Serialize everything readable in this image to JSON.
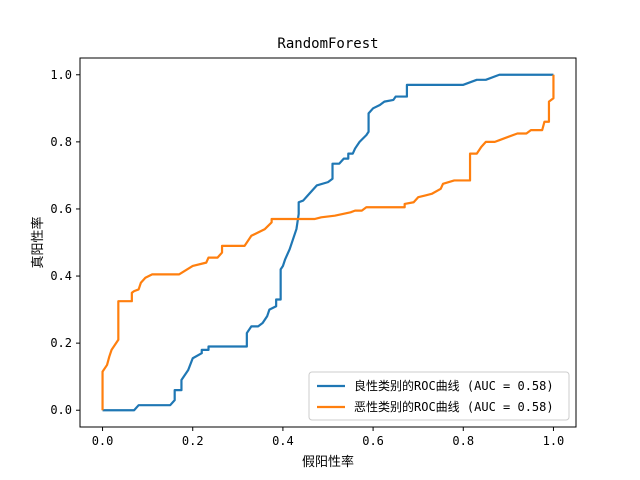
{
  "chart_data": {
    "type": "line",
    "title": "RandomForest",
    "xlabel": "假阳性率",
    "ylabel": "真阳性率",
    "xlim": [
      -0.05,
      1.05
    ],
    "ylim": [
      -0.05,
      1.05
    ],
    "xticks": [
      0.0,
      0.2,
      0.4,
      0.6,
      0.8,
      1.0
    ],
    "xtick_labels": [
      "0.0",
      "0.2",
      "0.4",
      "0.6",
      "0.8",
      "1.0"
    ],
    "yticks": [
      0.0,
      0.2,
      0.4,
      0.6,
      0.8,
      1.0
    ],
    "ytick_labels": [
      "0.0",
      "0.2",
      "0.4",
      "0.6",
      "0.8",
      "1.0"
    ],
    "grid": false,
    "legend_position": "bottom-right",
    "series": [
      {
        "name": "良性类别的ROC曲线 (AUC = 0.58)",
        "color": "#1f77b4",
        "points": [
          [
            0.0,
            0.0
          ],
          [
            0.07,
            0.0
          ],
          [
            0.08,
            0.015
          ],
          [
            0.15,
            0.015
          ],
          [
            0.16,
            0.03
          ],
          [
            0.16,
            0.06
          ],
          [
            0.175,
            0.06
          ],
          [
            0.175,
            0.09
          ],
          [
            0.19,
            0.12
          ],
          [
            0.2,
            0.155
          ],
          [
            0.22,
            0.17
          ],
          [
            0.22,
            0.18
          ],
          [
            0.235,
            0.18
          ],
          [
            0.235,
            0.19
          ],
          [
            0.32,
            0.19
          ],
          [
            0.32,
            0.23
          ],
          [
            0.33,
            0.25
          ],
          [
            0.345,
            0.25
          ],
          [
            0.355,
            0.26
          ],
          [
            0.36,
            0.27
          ],
          [
            0.365,
            0.28
          ],
          [
            0.37,
            0.3
          ],
          [
            0.385,
            0.31
          ],
          [
            0.385,
            0.33
          ],
          [
            0.395,
            0.33
          ],
          [
            0.395,
            0.42
          ],
          [
            0.4,
            0.43
          ],
          [
            0.405,
            0.45
          ],
          [
            0.415,
            0.48
          ],
          [
            0.43,
            0.54
          ],
          [
            0.435,
            0.585
          ],
          [
            0.435,
            0.62
          ],
          [
            0.445,
            0.625
          ],
          [
            0.455,
            0.64
          ],
          [
            0.465,
            0.655
          ],
          [
            0.475,
            0.67
          ],
          [
            0.5,
            0.68
          ],
          [
            0.51,
            0.69
          ],
          [
            0.51,
            0.735
          ],
          [
            0.525,
            0.735
          ],
          [
            0.535,
            0.75
          ],
          [
            0.545,
            0.75
          ],
          [
            0.545,
            0.765
          ],
          [
            0.555,
            0.765
          ],
          [
            0.56,
            0.78
          ],
          [
            0.57,
            0.8
          ],
          [
            0.585,
            0.82
          ],
          [
            0.59,
            0.83
          ],
          [
            0.59,
            0.885
          ],
          [
            0.6,
            0.9
          ],
          [
            0.615,
            0.91
          ],
          [
            0.625,
            0.92
          ],
          [
            0.645,
            0.925
          ],
          [
            0.65,
            0.935
          ],
          [
            0.675,
            0.935
          ],
          [
            0.675,
            0.97
          ],
          [
            0.8,
            0.97
          ],
          [
            0.83,
            0.985
          ],
          [
            0.85,
            0.985
          ],
          [
            0.88,
            1.0
          ],
          [
            1.0,
            1.0
          ]
        ]
      },
      {
        "name": "恶性类别的ROC曲线 (AUC = 0.58)",
        "color": "#ff7f0e",
        "points": [
          [
            0.0,
            0.0
          ],
          [
            0.0,
            0.115
          ],
          [
            0.01,
            0.135
          ],
          [
            0.015,
            0.16
          ],
          [
            0.02,
            0.18
          ],
          [
            0.03,
            0.2
          ],
          [
            0.035,
            0.21
          ],
          [
            0.035,
            0.325
          ],
          [
            0.065,
            0.325
          ],
          [
            0.065,
            0.35
          ],
          [
            0.07,
            0.355
          ],
          [
            0.08,
            0.36
          ],
          [
            0.085,
            0.38
          ],
          [
            0.095,
            0.395
          ],
          [
            0.11,
            0.405
          ],
          [
            0.17,
            0.405
          ],
          [
            0.2,
            0.43
          ],
          [
            0.23,
            0.44
          ],
          [
            0.235,
            0.455
          ],
          [
            0.255,
            0.455
          ],
          [
            0.265,
            0.47
          ],
          [
            0.265,
            0.49
          ],
          [
            0.315,
            0.49
          ],
          [
            0.33,
            0.52
          ],
          [
            0.36,
            0.54
          ],
          [
            0.375,
            0.56
          ],
          [
            0.375,
            0.57
          ],
          [
            0.47,
            0.57
          ],
          [
            0.485,
            0.575
          ],
          [
            0.515,
            0.58
          ],
          [
            0.55,
            0.59
          ],
          [
            0.56,
            0.595
          ],
          [
            0.575,
            0.595
          ],
          [
            0.585,
            0.605
          ],
          [
            0.67,
            0.605
          ],
          [
            0.67,
            0.615
          ],
          [
            0.69,
            0.62
          ],
          [
            0.7,
            0.635
          ],
          [
            0.715,
            0.64
          ],
          [
            0.73,
            0.645
          ],
          [
            0.75,
            0.66
          ],
          [
            0.755,
            0.675
          ],
          [
            0.78,
            0.685
          ],
          [
            0.815,
            0.685
          ],
          [
            0.815,
            0.765
          ],
          [
            0.83,
            0.765
          ],
          [
            0.84,
            0.785
          ],
          [
            0.85,
            0.8
          ],
          [
            0.87,
            0.8
          ],
          [
            0.88,
            0.805
          ],
          [
            0.92,
            0.825
          ],
          [
            0.94,
            0.825
          ],
          [
            0.95,
            0.835
          ],
          [
            0.975,
            0.835
          ],
          [
            0.98,
            0.86
          ],
          [
            0.99,
            0.86
          ],
          [
            0.99,
            0.92
          ],
          [
            1.0,
            0.93
          ],
          [
            1.0,
            1.0
          ]
        ]
      }
    ]
  }
}
